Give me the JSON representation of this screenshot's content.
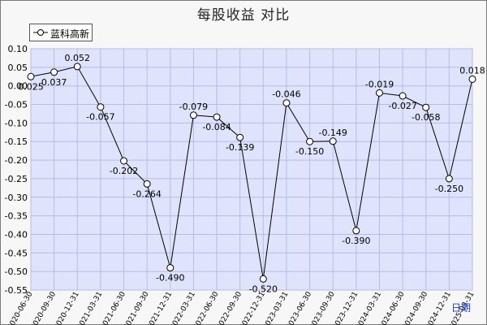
{
  "title": "每股收益  对比",
  "chart_data": {
    "type": "line",
    "title": "每股收益  对比",
    "xlabel": "日期",
    "ylabel": "",
    "ylim": [
      -0.55,
      0.1
    ],
    "yticks": [
      "0.10",
      "0.05",
      "0.00",
      "-0.05",
      "-0.10",
      "-0.15",
      "-0.20",
      "-0.25",
      "-0.30",
      "-0.35",
      "-0.40",
      "-0.45",
      "-0.50",
      "-0.55"
    ],
    "grid": true,
    "legend_position": "top-left",
    "categories": [
      "2020-06-30",
      "2020-09-30",
      "2020-12-31",
      "2021-03-31",
      "2021-06-30",
      "2021-09-30",
      "2021-12-31",
      "2022-03-31",
      "2022-06-30",
      "2022-09-30",
      "2022-12-31",
      "2023-03-31",
      "2023-06-30",
      "2023-09-30",
      "2023-12-31",
      "2024-03-31",
      "2024-06-30",
      "2024-09-30",
      "2024-12-31",
      "2025-03-31"
    ],
    "series": [
      {
        "name": "蓝科高新",
        "values": [
          0.025,
          0.037,
          0.052,
          -0.057,
          -0.202,
          -0.264,
          -0.49,
          -0.079,
          -0.084,
          -0.139,
          -0.52,
          -0.046,
          -0.15,
          -0.149,
          -0.39,
          -0.019,
          -0.027,
          -0.058,
          -0.25,
          0.018
        ],
        "labels": [
          "0.025",
          "0.037",
          "0.052",
          "-0.057",
          "-0.202",
          "-0.264",
          "-0.490",
          "-0.079",
          "-0.084",
          "-0.139",
          "-0.520",
          "-0.046",
          "-0.150",
          "-0.149",
          "-0.390",
          "-0.019",
          "-0.027",
          "-0.058",
          "-0.250",
          "0.018"
        ]
      }
    ]
  },
  "colors": {
    "plot_bg": "#dfe3fb",
    "grid": "#b6bce6",
    "line": "#000000",
    "marker_fill": "#ffffff",
    "period_label": "#1a3ccf"
  }
}
